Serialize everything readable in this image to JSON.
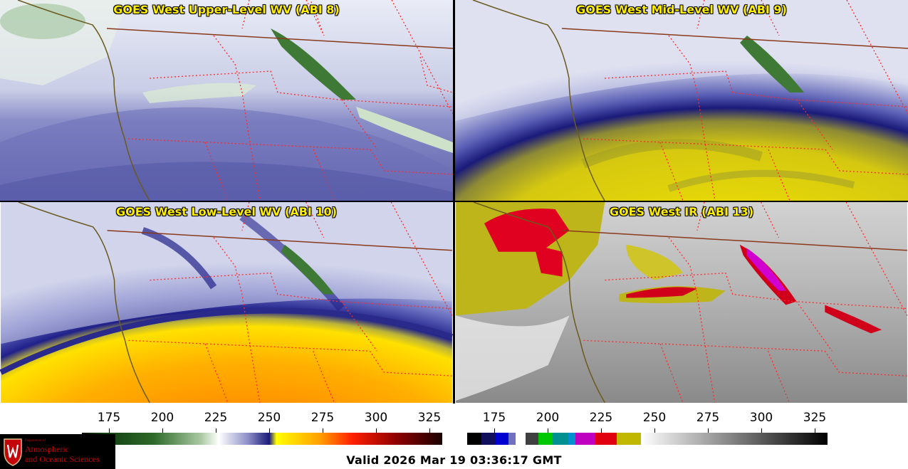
{
  "panels": {
    "p1": {
      "title": "GOES West Upper-Level WV (ABI 8)"
    },
    "p2": {
      "title": "GOES West Mid-Level WV (ABI 9)"
    },
    "p3": {
      "title": "GOES West Low-Level WV (ABI 10)"
    },
    "p4": {
      "title": "GOES West IR (ABI 13)"
    }
  },
  "colorbars": {
    "wv": {
      "ticks": [
        "175",
        "200",
        "225",
        "250",
        "275",
        "300",
        "325"
      ]
    },
    "ir": {
      "ticks": [
        "175",
        "200",
        "225",
        "250",
        "275",
        "300",
        "325"
      ]
    }
  },
  "logo": {
    "dept": "Department of",
    "line1": "Atmospheric",
    "line2": "and Oceanic Sciences"
  },
  "footer": {
    "valid": "Valid 2026 Mar 19 03:36:17 GMT"
  },
  "colors": {
    "title": "#ffee00",
    "state_lines": "#ff2a2a",
    "coast": "#6b5a1e",
    "uw_red": "#c5050c"
  }
}
